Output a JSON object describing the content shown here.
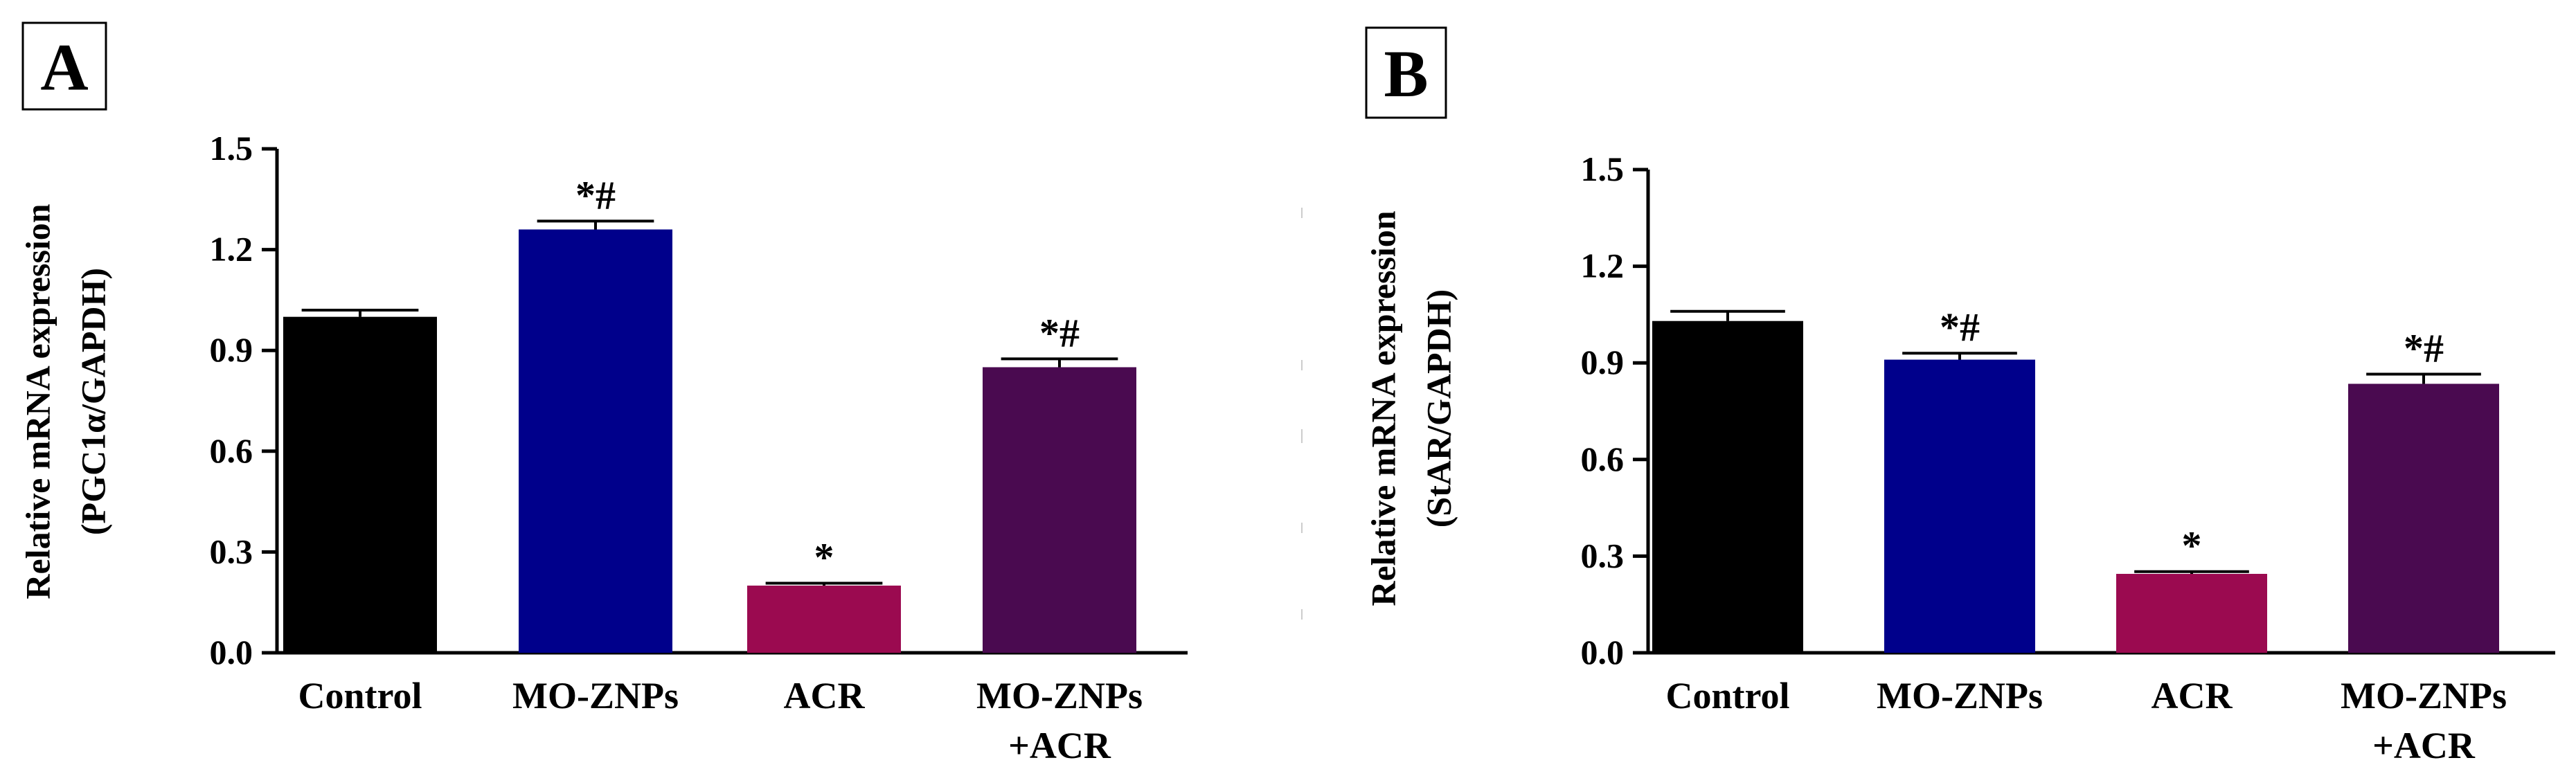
{
  "figure": {
    "panels": [
      "A",
      "B"
    ]
  },
  "chart_data": [
    {
      "type": "bar",
      "panel_label": "A",
      "title": "",
      "xlabel": "",
      "ylabel_lines": [
        "Relative mRNA expression",
        "(PGC1α/GAPDH)"
      ],
      "ylim": [
        0,
        1.5
      ],
      "yticks": [
        "0.0",
        "0.3",
        "0.6",
        "0.9",
        "1.2",
        "1.5"
      ],
      "ytick_values": [
        0,
        0.3,
        0.6,
        0.9,
        1.2,
        1.5
      ],
      "categories": [
        [
          "Control"
        ],
        [
          "MO-ZNPs"
        ],
        [
          "ACR"
        ],
        [
          "MO-ZNPs",
          "+ACR"
        ]
      ],
      "values": [
        1.0,
        1.26,
        0.2,
        0.85
      ],
      "errors": [
        0.02,
        0.025,
        0.007,
        0.025
      ],
      "colors": [
        "#000000",
        "#00008b",
        "#9b0a50",
        "#4a0a50"
      ],
      "annotations": [
        "",
        "*#",
        "*",
        "*#"
      ]
    },
    {
      "type": "bar",
      "panel_label": "B",
      "title": "",
      "xlabel": "",
      "ylabel_lines": [
        "Relative mRNA expression",
        "(StAR/GAPDH)"
      ],
      "ylim": [
        0,
        1.5
      ],
      "yticks": [
        "0.0",
        "0.3",
        "0.6",
        "0.9",
        "1.2",
        "1.5"
      ],
      "ytick_values": [
        0,
        0.3,
        0.6,
        0.9,
        1.2,
        1.5
      ],
      "categories": [
        [
          "Control"
        ],
        [
          "MO-ZNPs"
        ],
        [
          "ACR"
        ],
        [
          "MO-ZNPs",
          "+ACR"
        ]
      ],
      "values": [
        1.03,
        0.91,
        0.245,
        0.835
      ],
      "errors": [
        0.03,
        0.02,
        0.007,
        0.03
      ],
      "colors": [
        "#000000",
        "#00008b",
        "#9b0a50",
        "#4a0a50"
      ],
      "annotations": [
        "",
        "*#",
        "*",
        "*#"
      ]
    }
  ]
}
